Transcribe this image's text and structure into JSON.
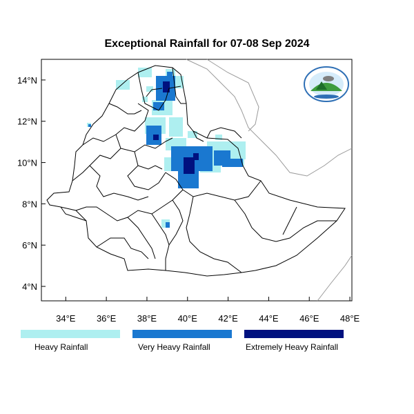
{
  "title": "Exceptional Rainfall for 07-08 Sep 2024",
  "axes": {
    "lon_ticks": [
      "34°E",
      "36°E",
      "38°E",
      "40°E",
      "42°E",
      "44°E",
      "46°E",
      "48°E"
    ],
    "lat_ticks": [
      "14°N",
      "12°N",
      "10°N",
      "8°N",
      "6°N",
      "4°N"
    ],
    "lon_values": [
      34,
      36,
      38,
      40,
      42,
      44,
      46,
      48
    ],
    "lat_values": [
      14,
      12,
      10,
      8,
      6,
      4
    ],
    "lon_range": [
      32.8,
      48.1
    ],
    "lat_range": [
      3.3,
      15.0
    ]
  },
  "legend": [
    {
      "label": "Heavy Rainfall",
      "color": "#aeeff0"
    },
    {
      "label": "Very Heavy Rainfall",
      "color": "#1a78d0"
    },
    {
      "label": "Extremely Heavy Rainfall",
      "color": "#00117f"
    }
  ],
  "logo": {
    "name": "Ethiopian Meteorology Institute emblem"
  }
}
